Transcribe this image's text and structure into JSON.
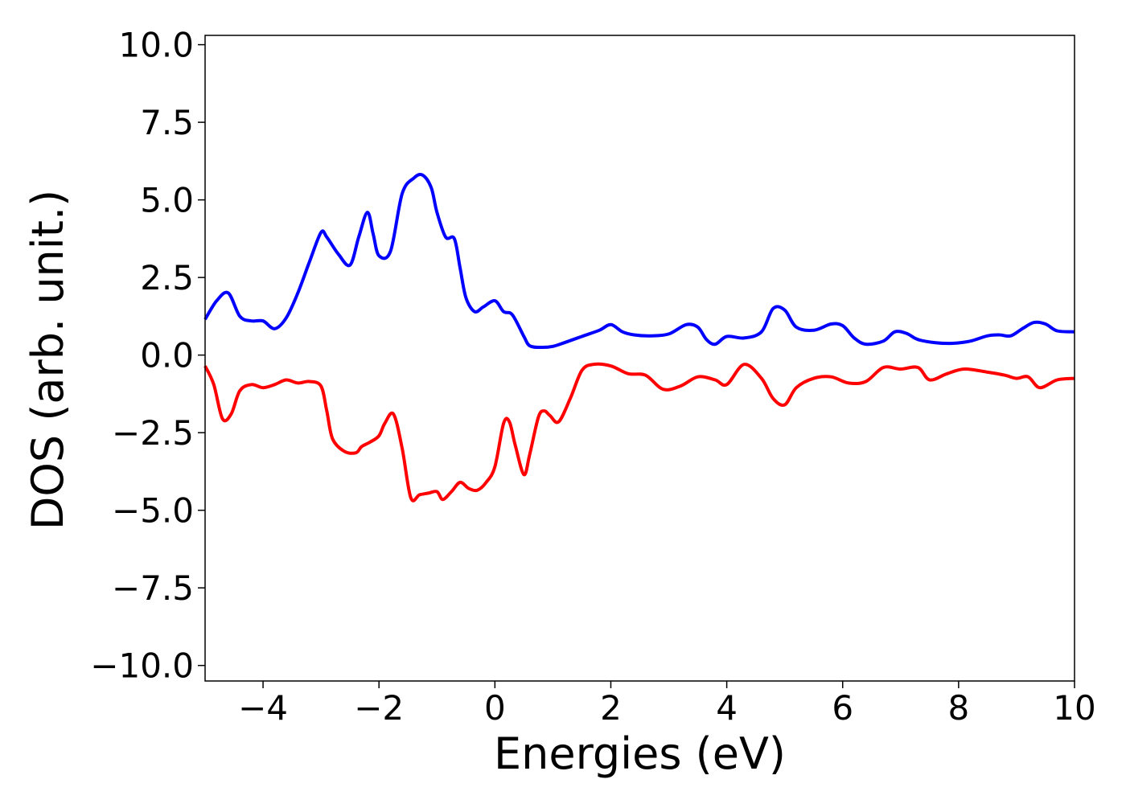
{
  "chart_data": {
    "type": "line",
    "title": "",
    "xlabel": "Energies (eV)",
    "ylabel": "DOS (arb. unit.)",
    "xlim": [
      -5,
      10
    ],
    "ylim": [
      -10.5,
      10.3
    ],
    "xticks": [
      -4,
      -2,
      0,
      2,
      4,
      6,
      8,
      10
    ],
    "xtick_labels": [
      "−4",
      "−2",
      "0",
      "2",
      "4",
      "6",
      "8",
      "10"
    ],
    "yticks": [
      10,
      7.5,
      5,
      2.5,
      0,
      -2.5,
      -5,
      -7.5,
      -10
    ],
    "ytick_labels": [
      "10.0",
      "7.5",
      "5.0",
      "2.5",
      "0.0",
      "−2.5",
      "−5.0",
      "−7.5",
      "−10.0"
    ],
    "grid": false,
    "series": [
      {
        "color": "#0000ff",
        "x": [
          -5.0,
          -4.8,
          -4.6,
          -4.4,
          -4.2,
          -4.0,
          -3.8,
          -3.6,
          -3.4,
          -3.2,
          -3.0,
          -2.9,
          -2.7,
          -2.5,
          -2.35,
          -2.2,
          -2.1,
          -2.0,
          -1.8,
          -1.6,
          -1.4,
          -1.25,
          -1.1,
          -1.0,
          -0.85,
          -0.7,
          -0.6,
          -0.5,
          -0.35,
          -0.2,
          0.0,
          0.15,
          0.3,
          0.5,
          0.6,
          0.8,
          1.0,
          1.2,
          1.5,
          1.8,
          2.0,
          2.2,
          2.4,
          2.7,
          3.0,
          3.3,
          3.5,
          3.65,
          3.8,
          4.0,
          4.3,
          4.6,
          4.8,
          5.0,
          5.2,
          5.5,
          5.8,
          6.0,
          6.2,
          6.4,
          6.7,
          6.9,
          7.1,
          7.3,
          7.6,
          7.9,
          8.2,
          8.5,
          8.7,
          8.9,
          9.1,
          9.3,
          9.5,
          9.7,
          10.0
        ],
        "y": [
          1.15,
          1.75,
          2.0,
          1.25,
          1.1,
          1.1,
          0.85,
          1.2,
          2.0,
          3.0,
          3.95,
          3.8,
          3.25,
          2.9,
          3.8,
          4.6,
          3.9,
          3.2,
          3.35,
          5.2,
          5.7,
          5.8,
          5.4,
          4.6,
          3.8,
          3.75,
          2.8,
          1.85,
          1.4,
          1.55,
          1.75,
          1.4,
          1.3,
          0.6,
          0.3,
          0.25,
          0.28,
          0.4,
          0.6,
          0.8,
          0.98,
          0.75,
          0.65,
          0.62,
          0.68,
          0.98,
          0.9,
          0.5,
          0.35,
          0.6,
          0.55,
          0.75,
          1.5,
          1.45,
          0.9,
          0.8,
          1.0,
          0.95,
          0.55,
          0.35,
          0.45,
          0.75,
          0.7,
          0.5,
          0.4,
          0.38,
          0.45,
          0.62,
          0.65,
          0.62,
          0.85,
          1.05,
          1.0,
          0.78,
          0.75
        ]
      },
      {
        "color": "#ff0000",
        "x": [
          -5.0,
          -4.85,
          -4.7,
          -4.55,
          -4.4,
          -4.2,
          -4.0,
          -3.8,
          -3.6,
          -3.4,
          -3.2,
          -3.0,
          -2.9,
          -2.8,
          -2.6,
          -2.4,
          -2.3,
          -2.15,
          -2.0,
          -1.9,
          -1.75,
          -1.6,
          -1.45,
          -1.3,
          -1.15,
          -1.0,
          -0.9,
          -0.75,
          -0.6,
          -0.45,
          -0.3,
          -0.15,
          0.0,
          0.15,
          0.25,
          0.35,
          0.5,
          0.6,
          0.75,
          0.85,
          0.95,
          1.1,
          1.3,
          1.5,
          1.7,
          2.0,
          2.3,
          2.6,
          2.9,
          3.2,
          3.5,
          3.8,
          4.0,
          4.3,
          4.6,
          4.8,
          5.0,
          5.2,
          5.5,
          5.8,
          6.1,
          6.4,
          6.7,
          7.0,
          7.3,
          7.5,
          7.8,
          8.1,
          8.5,
          8.8,
          9.0,
          9.2,
          9.4,
          9.7,
          10.0
        ],
        "y": [
          -0.35,
          -0.95,
          -2.05,
          -1.9,
          -1.15,
          -0.95,
          -1.05,
          -0.95,
          -0.8,
          -0.9,
          -0.85,
          -1.0,
          -1.8,
          -2.7,
          -3.1,
          -3.15,
          -2.95,
          -2.8,
          -2.6,
          -2.2,
          -1.9,
          -3.0,
          -4.6,
          -4.5,
          -4.45,
          -4.4,
          -4.65,
          -4.4,
          -4.1,
          -4.3,
          -4.35,
          -4.1,
          -3.6,
          -2.2,
          -2.15,
          -2.9,
          -3.85,
          -3.2,
          -2.0,
          -1.8,
          -1.95,
          -2.15,
          -1.4,
          -0.5,
          -0.3,
          -0.35,
          -0.6,
          -0.65,
          -1.1,
          -1.0,
          -0.7,
          -0.8,
          -0.95,
          -0.3,
          -0.75,
          -1.4,
          -1.6,
          -1.05,
          -0.75,
          -0.7,
          -0.9,
          -0.85,
          -0.4,
          -0.45,
          -0.4,
          -0.8,
          -0.6,
          -0.45,
          -0.55,
          -0.65,
          -0.75,
          -0.7,
          -1.05,
          -0.8,
          -0.75
        ]
      }
    ]
  }
}
